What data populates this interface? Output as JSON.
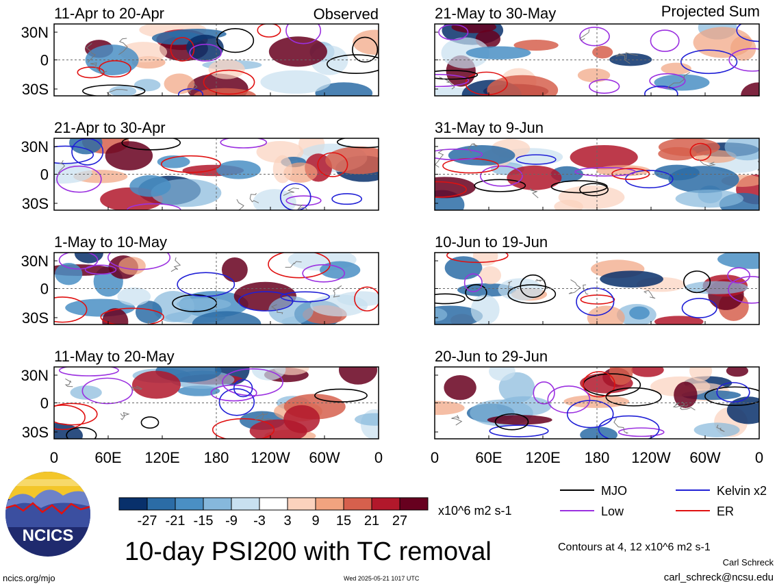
{
  "header": {
    "observed_label": "Observed",
    "projected_label": "Projected Sum"
  },
  "chart_data": {
    "type": "heatmap",
    "title": "10-day PSI200 with TC removal",
    "units": "x10^6 m2 s-1",
    "contour_note": "Contours at 4, 12 x10^6 m2 s-1",
    "x_ticks": [
      "0",
      "60E",
      "120E",
      "180",
      "120W",
      "60W",
      "0"
    ],
    "y_ticks": [
      "30N",
      "0",
      "30S"
    ],
    "colorbar": {
      "ticks": [
        "-27",
        "-21",
        "-15",
        "-9",
        "-3",
        "3",
        "9",
        "15",
        "21",
        "27"
      ],
      "colors": [
        "#08306b",
        "#2b6ca6",
        "#4a8fc4",
        "#86b8dc",
        "#c8e0f0",
        "#ffffff",
        "#fbd2bd",
        "#f1a37f",
        "#d6604d",
        "#b2182b",
        "#67001f"
      ]
    },
    "panels": [
      {
        "period": "11-Apr to 20-Apr",
        "column": "Observed",
        "seed": 3
      },
      {
        "period": "21-Apr to 30-Apr",
        "column": "Observed",
        "seed": 7
      },
      {
        "period": "1-May to 10-May",
        "column": "Observed",
        "seed": 11
      },
      {
        "period": "11-May to 20-May",
        "column": "Observed",
        "seed": 17
      },
      {
        "period": "21-May to 30-May",
        "column": "Projected Sum",
        "seed": 23
      },
      {
        "period": "31-May to 9-Jun",
        "column": "Projected Sum",
        "seed": 29
      },
      {
        "period": "10-Jun to 19-Jun",
        "column": "Projected Sum",
        "seed": 31
      },
      {
        "period": "20-Jun to 29-Jun",
        "column": "Projected Sum",
        "seed": 37
      }
    ],
    "legend": [
      {
        "label": "MJO",
        "color": "#000000"
      },
      {
        "label": "Kelvin x2",
        "color": "#1f1fd6"
      },
      {
        "label": "Low",
        "color": "#9b30e0"
      },
      {
        "label": "ER",
        "color": "#e01010"
      }
    ]
  },
  "logo": {
    "text": "NCICS"
  },
  "footer": {
    "url": "ncics.org/mjo",
    "timestamp": "Wed 2025-05-21 1017 UTC",
    "author": "Carl Schreck",
    "email": "carl_schreck@ncsu.edu"
  }
}
